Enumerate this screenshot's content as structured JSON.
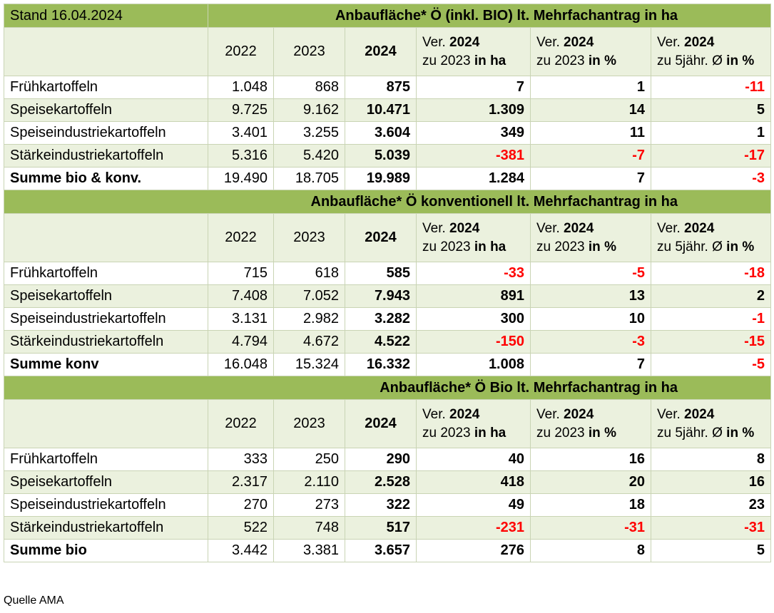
{
  "stand": "Stand 16.04.2024",
  "source": "Quelle AMA",
  "headers": {
    "y2022": "2022",
    "y2023": "2023",
    "y2024": "2024",
    "ver_prefix": "Ver.",
    "ver_year": "2024",
    "col4_line2_a": "zu 2023",
    "col4_line2_b": "in ha",
    "col5_line2_a": "zu 2023",
    "col5_line2_b": "in %",
    "col6_line2_a": "zu 5jähr. Ø",
    "col6_line2_b": "in %"
  },
  "sections": [
    {
      "title": "Anbaufläche* Ö (inkl. BIO) lt. Mehrfachantrag in ha",
      "rows": [
        {
          "label": "Frühkartoffeln",
          "y2022": "1.048",
          "y2023": "868",
          "y2024": "875",
          "diff_ha": "7",
          "diff_pct": "1",
          "diff_5y": "-11"
        },
        {
          "label": "Speisekartoffeln",
          "y2022": "9.725",
          "y2023": "9.162",
          "y2024": "10.471",
          "diff_ha": "1.309",
          "diff_pct": "14",
          "diff_5y": "5"
        },
        {
          "label": "Speiseindustriekartoffeln",
          "y2022": "3.401",
          "y2023": "3.255",
          "y2024": "3.604",
          "diff_ha": "349",
          "diff_pct": "11",
          "diff_5y": "1"
        },
        {
          "label": "Stärkeindustriekartoffeln",
          "y2022": "5.316",
          "y2023": "5.420",
          "y2024": "5.039",
          "diff_ha": "-381",
          "diff_pct": "-7",
          "diff_5y": "-17"
        },
        {
          "label": "Summe bio & konv.",
          "y2022": "19.490",
          "y2023": "18.705",
          "y2024": "19.989",
          "diff_ha": "1.284",
          "diff_pct": "7",
          "diff_5y": "-3"
        }
      ]
    },
    {
      "title": "Anbaufläche* Ö konventionell lt. Mehrfachantrag in ha",
      "rows": [
        {
          "label": "Frühkartoffeln",
          "y2022": "715",
          "y2023": "618",
          "y2024": "585",
          "diff_ha": "-33",
          "diff_pct": "-5",
          "diff_5y": "-18"
        },
        {
          "label": "Speisekartoffeln",
          "y2022": "7.408",
          "y2023": "7.052",
          "y2024": "7.943",
          "diff_ha": "891",
          "diff_pct": "13",
          "diff_5y": "2"
        },
        {
          "label": "Speiseindustriekartoffeln",
          "y2022": "3.131",
          "y2023": "2.982",
          "y2024": "3.282",
          "diff_ha": "300",
          "diff_pct": "10",
          "diff_5y": "-1"
        },
        {
          "label": "Stärkeindustriekartoffeln",
          "y2022": "4.794",
          "y2023": "4.672",
          "y2024": "4.522",
          "diff_ha": "-150",
          "diff_pct": "-3",
          "diff_5y": "-15"
        },
        {
          "label": "Summe konv",
          "y2022": "16.048",
          "y2023": "15.324",
          "y2024": "16.332",
          "diff_ha": "1.008",
          "diff_pct": "7",
          "diff_5y": "-5"
        }
      ]
    },
    {
      "title": "Anbaufläche* Ö Bio lt. Mehrfachantrag in ha",
      "rows": [
        {
          "label": "Frühkartoffeln",
          "y2022": "333",
          "y2023": "250",
          "y2024": "290",
          "diff_ha": "40",
          "diff_pct": "16",
          "diff_5y": "8"
        },
        {
          "label": "Speisekartoffeln",
          "y2022": "2.317",
          "y2023": "2.110",
          "y2024": "2.528",
          "diff_ha": "418",
          "diff_pct": "20",
          "diff_5y": "16"
        },
        {
          "label": "Speiseindustriekartoffeln",
          "y2022": "270",
          "y2023": "273",
          "y2024": "322",
          "diff_ha": "49",
          "diff_pct": "18",
          "diff_5y": "23"
        },
        {
          "label": "Stärkeindustriekartoffeln",
          "y2022": "522",
          "y2023": "748",
          "y2024": "517",
          "diff_ha": "-231",
          "diff_pct": "-31",
          "diff_5y": "-31"
        },
        {
          "label": "Summe bio",
          "y2022": "3.442",
          "y2023": "3.381",
          "y2024": "3.657",
          "diff_ha": "276",
          "diff_pct": "8",
          "diff_5y": "5"
        }
      ]
    }
  ],
  "colors": {
    "band": "#9bbb59",
    "alt_row": "#ebf1de",
    "negative": "#ff0000"
  }
}
